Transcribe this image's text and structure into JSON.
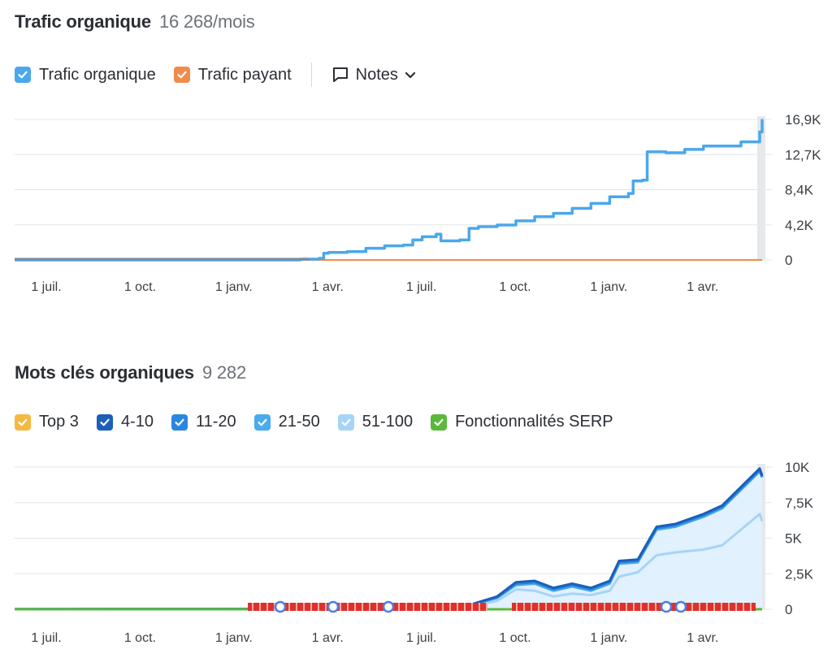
{
  "traffic": {
    "title": "Trafic organique",
    "value": "16 268/mois",
    "legend": [
      {
        "label": "Trafic organique",
        "color": "#4aa8ec"
      },
      {
        "label": "Trafic payant",
        "color": "#f08c4b"
      }
    ],
    "notes_label": "Notes"
  },
  "keywords": {
    "title": "Mots clés organiques",
    "value": "9 282",
    "legend": [
      {
        "label": "Top 3",
        "color": "#f5b940"
      },
      {
        "label": "4-10",
        "color": "#1b5fb8"
      },
      {
        "label": "11-20",
        "color": "#2c86e0"
      },
      {
        "label": "21-50",
        "color": "#4aabef"
      },
      {
        "label": "51-100",
        "color": "#a6d4f8"
      },
      {
        "label": "Fonctionnalités SERP",
        "color": "#5ab93a"
      }
    ]
  },
  "chart_data": [
    {
      "type": "line",
      "title": "Trafic organique",
      "x_labels": [
        "1 juil.",
        "1 oct.",
        "1 janv.",
        "1 avr.",
        "1 juil.",
        "1 oct.",
        "1 janv.",
        "1 avr."
      ],
      "y_tick_labels": [
        "16,9K",
        "12,7K",
        "8,4K",
        "4,2K",
        "0"
      ],
      "ylim": [
        0,
        16900
      ],
      "grid": true,
      "series": [
        {
          "name": "Trafic organique",
          "color": "#4aa8ec",
          "points": [
            [
              0,
              0
            ],
            [
              2.5,
              0
            ],
            [
              2.7,
              100
            ],
            [
              2.9,
              200
            ],
            [
              2.95,
              800
            ],
            [
              3.0,
              900
            ],
            [
              3.2,
              1000
            ],
            [
              3.4,
              1400
            ],
            [
              3.6,
              1700
            ],
            [
              3.8,
              1800
            ],
            [
              3.9,
              2400
            ],
            [
              4.0,
              2800
            ],
            [
              4.15,
              3100
            ],
            [
              4.2,
              2300
            ],
            [
              4.4,
              2400
            ],
            [
              4.5,
              3800
            ],
            [
              4.6,
              4000
            ],
            [
              4.8,
              4200
            ],
            [
              5.0,
              4700
            ],
            [
              5.2,
              5200
            ],
            [
              5.4,
              5600
            ],
            [
              5.6,
              6200
            ],
            [
              5.8,
              6800
            ],
            [
              6.0,
              7600
            ],
            [
              6.2,
              8000
            ],
            [
              6.25,
              9500
            ],
            [
              6.35,
              9600
            ],
            [
              6.4,
              13000
            ],
            [
              6.6,
              12900
            ],
            [
              6.8,
              13300
            ],
            [
              7.0,
              13700
            ],
            [
              7.2,
              13700
            ],
            [
              7.4,
              14200
            ],
            [
              7.6,
              15400
            ],
            [
              7.7,
              16800
            ],
            [
              7.76,
              16268
            ]
          ]
        },
        {
          "name": "Trafic payant",
          "color": "#f08c4b",
          "points": [
            [
              0,
              0
            ],
            [
              7.76,
              0
            ]
          ]
        }
      ]
    },
    {
      "type": "area",
      "title": "Mots clés organiques",
      "x_labels": [
        "1 juil.",
        "1 oct.",
        "1 janv.",
        "1 avr.",
        "1 juil.",
        "1 oct.",
        "1 janv.",
        "1 avr."
      ],
      "y_tick_labels": [
        "10K",
        "7,5K",
        "5K",
        "2,5K",
        "0"
      ],
      "ylim": [
        0,
        10000
      ],
      "grid": true,
      "series": [
        {
          "name": "Top 3",
          "color": "#f5b940",
          "points": [
            [
              0,
              0
            ],
            [
              7.76,
              0
            ]
          ]
        },
        {
          "name": "4-10",
          "color": "#1b5fb8",
          "points": [
            [
              0,
              10
            ],
            [
              3.0,
              20
            ],
            [
              4.0,
              100
            ],
            [
              4.5,
              300
            ],
            [
              4.8,
              900
            ],
            [
              5.0,
              1900
            ],
            [
              5.2,
              2000
            ],
            [
              5.4,
              1500
            ],
            [
              5.6,
              1800
            ],
            [
              5.8,
              1500
            ],
            [
              6.0,
              2000
            ],
            [
              6.1,
              3400
            ],
            [
              6.3,
              3500
            ],
            [
              6.5,
              5800
            ],
            [
              6.7,
              6000
            ],
            [
              7.0,
              6700
            ],
            [
              7.2,
              7300
            ],
            [
              7.4,
              8600
            ],
            [
              7.6,
              9900
            ],
            [
              7.76,
              9400
            ]
          ]
        },
        {
          "name": "11-20",
          "color": "#2c86e0",
          "points": [
            [
              0,
              8
            ],
            [
              3.0,
              18
            ],
            [
              4.0,
              95
            ],
            [
              4.5,
              280
            ],
            [
              4.8,
              850
            ],
            [
              5.0,
              1800
            ],
            [
              5.2,
              1900
            ],
            [
              5.4,
              1400
            ],
            [
              5.6,
              1700
            ],
            [
              5.8,
              1400
            ],
            [
              6.0,
              1900
            ],
            [
              6.1,
              3300
            ],
            [
              6.3,
              3400
            ],
            [
              6.5,
              5700
            ],
            [
              6.7,
              5900
            ],
            [
              7.0,
              6600
            ],
            [
              7.2,
              7200
            ],
            [
              7.4,
              8500
            ],
            [
              7.6,
              9800
            ],
            [
              7.76,
              9300
            ]
          ]
        },
        {
          "name": "21-50",
          "color": "#4aabef",
          "points": [
            [
              0,
              6
            ],
            [
              3.0,
              15
            ],
            [
              4.0,
              90
            ],
            [
              4.5,
              260
            ],
            [
              4.8,
              800
            ],
            [
              5.0,
              1700
            ],
            [
              5.2,
              1800
            ],
            [
              5.4,
              1300
            ],
            [
              5.6,
              1600
            ],
            [
              5.8,
              1300
            ],
            [
              6.0,
              1800
            ],
            [
              6.1,
              3200
            ],
            [
              6.3,
              3300
            ],
            [
              6.5,
              5600
            ],
            [
              6.7,
              5800
            ],
            [
              7.0,
              6500
            ],
            [
              7.2,
              7100
            ],
            [
              7.4,
              8400
            ],
            [
              7.6,
              9700
            ],
            [
              7.76,
              9282
            ]
          ]
        },
        {
          "name": "51-100",
          "color": "#a6d4f8",
          "points": [
            [
              0,
              4
            ],
            [
              3.0,
              10
            ],
            [
              4.0,
              60
            ],
            [
              4.5,
              180
            ],
            [
              4.8,
              600
            ],
            [
              5.0,
              1400
            ],
            [
              5.2,
              1300
            ],
            [
              5.4,
              900
            ],
            [
              5.6,
              1100
            ],
            [
              5.8,
              1000
            ],
            [
              6.0,
              1300
            ],
            [
              6.1,
              2300
            ],
            [
              6.3,
              2600
            ],
            [
              6.5,
              3800
            ],
            [
              6.7,
              4000
            ],
            [
              7.0,
              4200
            ],
            [
              7.2,
              4500
            ],
            [
              7.4,
              5600
            ],
            [
              7.6,
              6700
            ],
            [
              7.76,
              6200
            ]
          ]
        },
        {
          "name": "Fonctionnalités SERP",
          "color": "#5ab93a",
          "points": [
            [
              0,
              0
            ],
            [
              7.76,
              0
            ]
          ]
        }
      ]
    }
  ]
}
